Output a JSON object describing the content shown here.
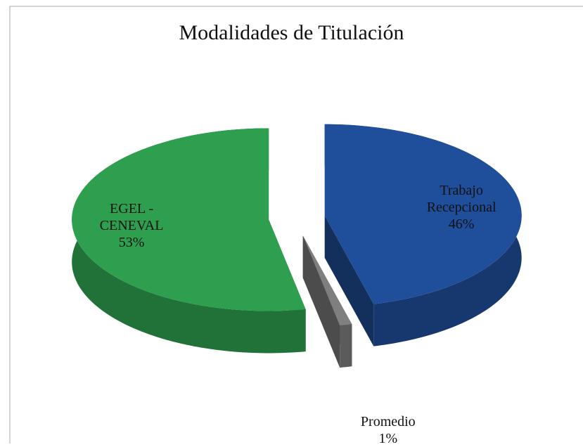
{
  "chart_data": {
    "type": "pie",
    "title": "Modalidades de Titulación",
    "categories": [
      "Trabajo Recepcional",
      "Promedio",
      "EGEL - CENEVAL"
    ],
    "values": [
      46,
      1,
      53
    ],
    "value_labels": [
      "46%",
      "1%",
      "53%"
    ],
    "colors": [
      "#1f4e9a",
      "#7f7f7f",
      "#2e9e4f"
    ]
  }
}
